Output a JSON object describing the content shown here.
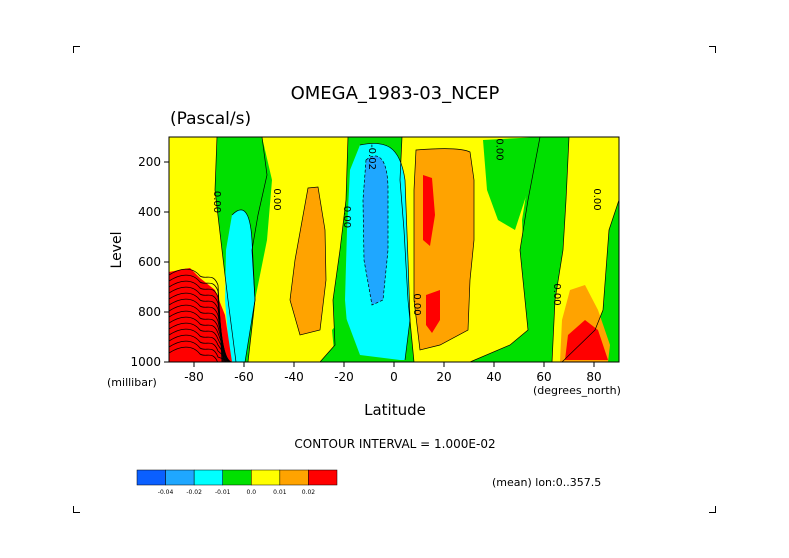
{
  "chart_data": {
    "type": "heatmap",
    "title": "OMEGA_1983-03_NCEP",
    "subtitle": "(Pascal/s)",
    "xlabel": "Latitude",
    "xunits": "(degrees_north)",
    "ylabel": "Level",
    "yunits": "(millibar)",
    "xlim": [
      -90,
      90
    ],
    "ylim": [
      1000,
      100
    ],
    "y_inverted": true,
    "x_ticks": [
      "-80",
      "-60",
      "-40",
      "-20",
      "0",
      "20",
      "40",
      "60",
      "80"
    ],
    "y_ticks": [
      "200",
      "400",
      "600",
      "800",
      "1000"
    ],
    "contour_interval_text": "CONTOUR INTERVAL = 1.000E-02",
    "footer_text": "(mean) lon:0..357.5",
    "legend": {
      "labels": [
        "-0.04",
        "-0.02",
        "-0.01",
        "0.0",
        "0.01",
        "0.02"
      ],
      "colors": [
        "#0a5fff",
        "#1fa7ff",
        "#00ffff",
        "#00e000",
        "#ffff00",
        "#ffa300",
        "#ff0000"
      ]
    },
    "contour_labels": [
      {
        "text": "0.00",
        "lon": -72,
        "lev": 360
      },
      {
        "text": "0.00",
        "lon": -48,
        "lev": 350
      },
      {
        "text": "0.00",
        "lon": -20,
        "lev": 420
      },
      {
        "text": "-0.02",
        "lon": -10,
        "lev": 180
      },
      {
        "text": "0.00",
        "lon": 8,
        "lev": 770
      },
      {
        "text": "0.00",
        "lon": 41,
        "lev": 150
      },
      {
        "text": "0.00",
        "lon": 64,
        "lev": 730
      },
      {
        "text": "0.00",
        "lon": 80,
        "lev": 350
      }
    ],
    "regions": [
      {
        "level": "yellow",
        "lon_range": [
          -90,
          -52
        ],
        "lev_range": [
          100,
          1000
        ]
      },
      {
        "level": "green",
        "lon_range": [
          -74,
          -62
        ],
        "lev_range": [
          110,
          590
        ]
      },
      {
        "level": "cyan",
        "lon_range": [
          -67,
          -57
        ],
        "lev_range": [
          380,
          1000
        ]
      },
      {
        "level": "green",
        "lon_range": [
          -58,
          -49
        ],
        "lev_range": [
          100,
          560
        ]
      },
      {
        "level": "orange",
        "lon_range": [
          -42,
          -28
        ],
        "lev_range": [
          400,
          880
        ]
      },
      {
        "level": "green",
        "lon_range": [
          -24,
          8
        ],
        "lev_range": [
          100,
          1000
        ]
      },
      {
        "level": "cyan",
        "lon_range": [
          -18,
          6
        ],
        "lev_range": [
          110,
          990
        ]
      },
      {
        "level": "light-blue",
        "lon_range": [
          -13,
          -2
        ],
        "lev_range": [
          210,
          690
        ]
      },
      {
        "level": "orange",
        "lon_range": [
          10,
          33
        ],
        "lev_range": [
          120,
          980
        ]
      },
      {
        "level": "red",
        "lon_range": [
          11,
          15
        ],
        "lev_range": [
          160,
          430
        ]
      },
      {
        "level": "red",
        "lon_range": [
          12,
          16
        ],
        "lev_range": [
          660,
          880
        ]
      },
      {
        "level": "green",
        "lon_range": [
          36,
          45
        ],
        "lev_range": [
          100,
          650
        ]
      },
      {
        "level": "green",
        "lon_range": [
          46,
          67
        ],
        "lev_range": [
          100,
          1000
        ]
      },
      {
        "level": "orange",
        "lon_range": [
          65,
          83
        ],
        "lev_range": [
          680,
          1000
        ]
      },
      {
        "level": "red",
        "lon_range": [
          68,
          82
        ],
        "lev_range": [
          810,
          1000
        ]
      },
      {
        "level": "green",
        "lon_range": [
          83,
          90
        ],
        "lev_range": [
          350,
          800
        ]
      },
      {
        "level": "red",
        "lon_range": [
          -90,
          -70
        ],
        "lev_range": [
          660,
          1000
        ]
      }
    ]
  }
}
